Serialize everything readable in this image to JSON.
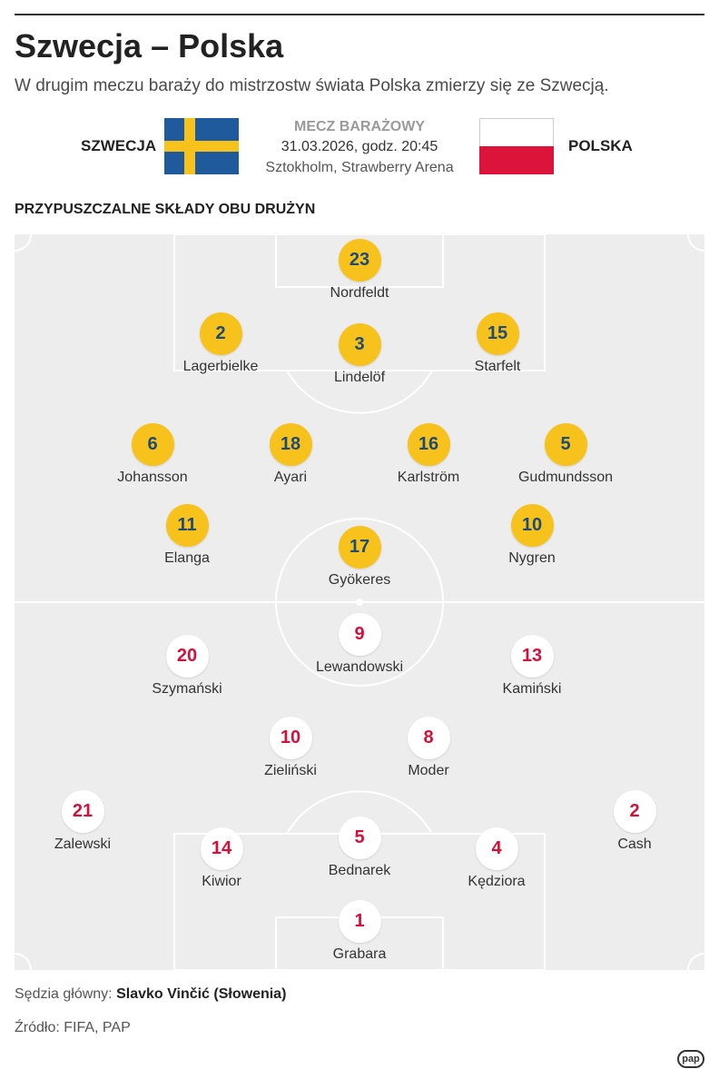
{
  "header": {
    "title": "Szwecja – Polska",
    "subtitle": "W drugim meczu baraży do mistrzostw świata Polska zmierzy się ze Szwecją."
  },
  "match": {
    "home_team": "SZWECJA",
    "away_team": "POLSKA",
    "label": "MECZ BARAŻOWY",
    "date": "31.03.2026, godz. 20:45",
    "venue": "Sztokholm, Strawberry Arena"
  },
  "section_title": "PRZYPUSZCZALNE SKŁADY OBU DRUŻYN",
  "lineups": {
    "sweden": [
      {
        "number": "23",
        "name": "Nordfeldt"
      },
      {
        "number": "2",
        "name": "Lagerbielke"
      },
      {
        "number": "3",
        "name": "Lindelöf"
      },
      {
        "number": "15",
        "name": "Starfelt"
      },
      {
        "number": "6",
        "name": "Johansson"
      },
      {
        "number": "18",
        "name": "Ayari"
      },
      {
        "number": "16",
        "name": "Karlström"
      },
      {
        "number": "5",
        "name": "Gudmundsson"
      },
      {
        "number": "11",
        "name": "Elanga"
      },
      {
        "number": "17",
        "name": "Gyökeres"
      },
      {
        "number": "10",
        "name": "Nygren"
      }
    ],
    "poland": [
      {
        "number": "9",
        "name": "Lewandowski"
      },
      {
        "number": "20",
        "name": "Szymański"
      },
      {
        "number": "13",
        "name": "Kamiński"
      },
      {
        "number": "10",
        "name": "Zieliński"
      },
      {
        "number": "8",
        "name": "Moder"
      },
      {
        "number": "21",
        "name": "Zalewski"
      },
      {
        "number": "2",
        "name": "Cash"
      },
      {
        "number": "14",
        "name": "Kiwior"
      },
      {
        "number": "5",
        "name": "Bednarek"
      },
      {
        "number": "4",
        "name": "Kędziora"
      },
      {
        "number": "1",
        "name": "Grabara"
      }
    ]
  },
  "footer": {
    "referee_label": "Sędzia główny:",
    "referee_name": "Slavko Vinčić (Słowenia)",
    "source": "Źródło: FIFA, PAP",
    "logo_text": "pap"
  },
  "colors": {
    "sweden_disc": "#f7c21c",
    "sweden_number": "#1f4b74",
    "poland_disc": "#ffffff",
    "poland_number": "#d3103a",
    "sweden_flag_blue": "#1f5a9c",
    "sweden_flag_yellow": "#f7c21c",
    "poland_flag_red": "#dc143c",
    "pitch": "#ededed"
  }
}
